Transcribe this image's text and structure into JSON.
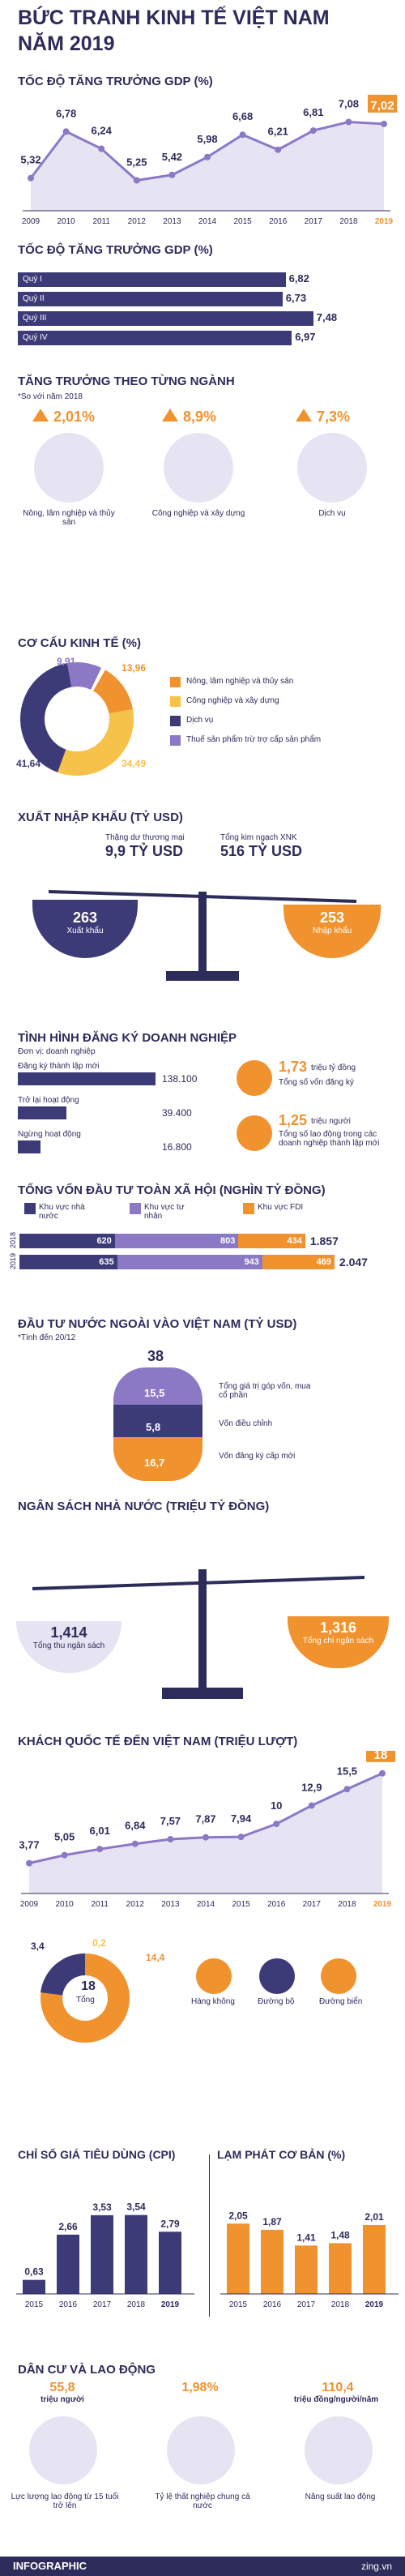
{
  "colors": {
    "navy": "#2d2b5a",
    "orange": "#f0922e",
    "purple": "#8b79c6",
    "light": "#e6e4f2",
    "yellow": "#f6c24a"
  },
  "title": {
    "line1": "BỨC TRANH KINH TẾ VIỆT NAM",
    "line2": "NĂM 2019"
  },
  "gdp_growth": {
    "heading": "TỐC ĐỘ TĂNG TRƯỞNG GDP (%)"
  },
  "gdp_quarters": {
    "heading": "TỐC ĐỘ TĂNG TRƯỞNG GDP (%)",
    "items": [
      {
        "label": "Quý I",
        "value": "6,82"
      },
      {
        "label": "Quý II",
        "value": "6,73"
      },
      {
        "label": "Quý III",
        "value": "7,48"
      },
      {
        "label": "Quý IV",
        "value": "6,97"
      }
    ]
  },
  "sectors": {
    "heading": "TĂNG TRƯỞNG THEO TỪNG NGÀNH",
    "note": "*So với năm 2018",
    "items": [
      {
        "value": "2,01%",
        "label": "Nông, lâm nghiệp và thủy sản"
      },
      {
        "value": "8,9%",
        "label": "Công nghiệp và xây dựng"
      },
      {
        "value": "7,3%",
        "label": "Dịch vụ"
      }
    ]
  },
  "structure": {
    "heading": "CƠ CẤU KINH TẾ (%)",
    "values": [
      "9,91",
      "13,96",
      "34,49",
      "41,64"
    ],
    "legend": [
      "Nông, lâm nghiệp và thủy sản",
      "Công nghiệp và xây dựng",
      "Dịch vụ",
      "Thuế sản phẩm trừ trợ cấp sản phẩm"
    ]
  },
  "trade": {
    "heading": "XUẤT NHẬP KHẨU (TỶ USD)",
    "surplus_label": "Thặng dư thương mại",
    "surplus": "9,9 TỶ USD",
    "total_label": "Tổng kim ngạch XNK",
    "total": "516 TỶ USD",
    "export": "263",
    "export_label": "Xuất khẩu",
    "import": "253",
    "import_label": "Nhập khẩu"
  },
  "business": {
    "heading": "TÌNH HÌNH ĐĂNG KÝ DOANH NGHIỆP",
    "note": "Đơn vị: doanh nghiệp",
    "rows": [
      {
        "label": "Đăng ký thành lập mới",
        "value": "138.100"
      },
      {
        "label": "Trở lại hoạt động",
        "value": "39.400"
      },
      {
        "label": "Ngừng hoạt động",
        "value": "16.800"
      }
    ],
    "capital": "1,73",
    "capital_unit": "triệu tỷ đồng",
    "capital_label": "Tổng số vốn đăng ký",
    "jobs": "1,25",
    "jobs_unit": "triệu người",
    "jobs_label": "Tổng số lao động trong các doanh nghiệp thành lập mới"
  },
  "investment": {
    "heading": "TỔNG VỐN ĐẦU TƯ TOÀN XÃ HỘI (NGHÌN TỶ ĐỒNG)",
    "legend": [
      "Khu vực nhà nước",
      "Khu vực tư nhân",
      "Khu vực FDI"
    ],
    "rows": [
      {
        "year": "2018",
        "a": "620",
        "b": "803",
        "c": "434",
        "total": "1.857"
      },
      {
        "year": "2019",
        "a": "635",
        "b": "943",
        "c": "469",
        "total": "2.047"
      }
    ]
  },
  "fdi": {
    "heading": "ĐẦU TƯ NƯỚC NGOÀI VÀO VIỆT NAM (TỶ USD)",
    "note": "*Tính đến 20/12",
    "total": "38",
    "v1": "15,5",
    "l1": "Tổng giá trị góp vốn, mua cổ phần",
    "v2": "5,8",
    "l2": "Vốn điều chỉnh",
    "v3": "16,7",
    "l3": "Vốn đăng ký cấp mới"
  },
  "budget": {
    "heading": "NGÂN SÁCH NHÀ NƯỚC (TRIỆU TỶ ĐỒNG)",
    "revenue": "1,414",
    "revenue_label": "Tổng thu ngân sách",
    "spending": "1,316",
    "spending_label": "Tổng chi ngân sách"
  },
  "tourists": {
    "heading": "KHÁCH QUỐC TẾ ĐẾN VIỆT NAM (TRIỆU LƯỢT)",
    "total": "18",
    "total_label": "Tổng",
    "modes": [
      "Hàng không",
      "Đường bộ",
      "Đường biển"
    ],
    "pie_values": [
      "14,4",
      "3,4",
      "0,2"
    ]
  },
  "cpi": {
    "heading": "CHỈ SỐ GIÁ TIÊU DÙNG (CPI)"
  },
  "inflation": {
    "heading": "LẠM PHÁT CƠ BẢN (%)"
  },
  "population": {
    "heading": "DÂN CƯ VÀ LAO ĐỘNG",
    "a": "55,8",
    "a_unit": "triệu người",
    "a_label": "Lực lượng lao động từ 15 tuổi trở lên",
    "b": "1,98%",
    "b_label": "Tỷ lệ thất nghiệp chung cả nước",
    "c": "110,4",
    "c_unit": "triệu đồng/người/năm",
    "c_label": "Năng suất lao động"
  },
  "footer": {
    "left": "INFOGRAPHIC",
    "right": "zing.vn"
  },
  "chart_data": [
    {
      "type": "line",
      "title": "TỐC ĐỘ TĂNG TRƯỞNG GDP (%)",
      "x": [
        "2009",
        "2010",
        "2011",
        "2012",
        "2013",
        "2014",
        "2015",
        "2016",
        "2017",
        "2018",
        "2019"
      ],
      "values": [
        5.32,
        6.78,
        6.24,
        5.25,
        5.42,
        5.98,
        6.68,
        6.21,
        6.81,
        7.08,
        7.02
      ],
      "labels": [
        "5,32",
        "6,78",
        "6,24",
        "5,25",
        "5,42",
        "5,98",
        "6,68",
        "6,21",
        "6,81",
        "7,08",
        "7,02"
      ]
    },
    {
      "type": "line",
      "title": "KHÁCH QUỐC TẾ ĐẾN VIỆT NAM (TRIỆU LƯỢT)",
      "x": [
        "2009",
        "2010",
        "2011",
        "2012",
        "2013",
        "2014",
        "2015",
        "2016",
        "2017",
        "2018",
        "2019"
      ],
      "values": [
        3.77,
        5.05,
        6.01,
        6.84,
        7.57,
        7.87,
        7.94,
        10,
        12.9,
        15.5,
        18
      ],
      "labels": [
        "3,77",
        "5,05",
        "6,01",
        "6,84",
        "7,57",
        "7,87",
        "7,94",
        "10",
        "12,9",
        "15,5",
        "18"
      ]
    },
    {
      "type": "bar",
      "title": "CHỈ SỐ GIÁ TIÊU DÙNG (CPI)",
      "categories": [
        "2015",
        "2016",
        "2017",
        "2018",
        "2019"
      ],
      "values": [
        0.63,
        2.66,
        3.53,
        3.54,
        2.79
      ],
      "labels": [
        "0,63",
        "2,66",
        "3,53",
        "3,54",
        "2,79"
      ]
    },
    {
      "type": "bar",
      "title": "LẠM PHÁT CƠ BẢN (%)",
      "categories": [
        "2015",
        "2016",
        "2017",
        "2018",
        "2019"
      ],
      "values": [
        2.05,
        1.87,
        1.41,
        1.48,
        2.01
      ],
      "labels": [
        "2,05",
        "1,87",
        "1,41",
        "1,48",
        "2,01"
      ]
    }
  ]
}
